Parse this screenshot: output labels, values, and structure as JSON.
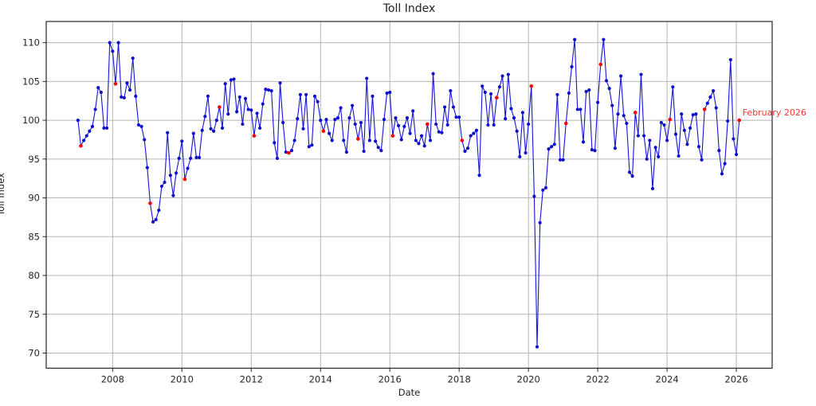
{
  "chart_data": {
    "type": "line",
    "title": "Toll Index",
    "xlabel": "Date",
    "ylabel": "Toll Index",
    "x_start": "2007-01",
    "x_end": "2026-02",
    "frequency": "monthly",
    "grid": true,
    "background_color": "#ffffff",
    "grid_color": "#b5b5b5",
    "spine_color": "#262626",
    "line_color": "#1414dd",
    "marker_color": "#0d0dcc",
    "highlight_color": "#ff0000",
    "ylim": [
      68.05,
      112.73
    ],
    "y_ticks": [
      70,
      75,
      80,
      85,
      90,
      95,
      100,
      105,
      110
    ],
    "x_ticks": {
      "labels": [
        "2008",
        "2010",
        "2012",
        "2014",
        "2016",
        "2018",
        "2020",
        "2022",
        "2024",
        "2026"
      ],
      "month_indices": [
        12,
        36,
        60,
        84,
        108,
        132,
        156,
        180,
        204,
        228
      ]
    },
    "highlight": {
      "rule": "February of each year shown as red markers",
      "month_offset": 1
    },
    "annotation": {
      "text": "February 2026",
      "point": "2026-02",
      "value": 100.0,
      "color": "#f4392e"
    },
    "series": [
      {
        "name": "Toll Index",
        "values": [
          100.0,
          96.7,
          97.4,
          98.0,
          98.6,
          99.2,
          101.4,
          104.2,
          103.6,
          99.0,
          99.0,
          110.0,
          108.9,
          104.7,
          110.0,
          103.0,
          102.9,
          104.8,
          103.9,
          108.0,
          103.1,
          99.4,
          99.2,
          97.5,
          93.9,
          89.3,
          86.9,
          87.2,
          88.4,
          91.5,
          92.0,
          98.4,
          92.9,
          90.3,
          93.2,
          95.1,
          97.3,
          92.4,
          93.8,
          95.1,
          98.3,
          95.2,
          95.2,
          98.7,
          100.5,
          103.1,
          98.9,
          98.6,
          100.0,
          101.7,
          99.0,
          104.7,
          100.8,
          105.2,
          105.3,
          101.1,
          103.0,
          99.5,
          102.8,
          101.4,
          101.3,
          98.0,
          100.9,
          99.0,
          102.1,
          104.0,
          103.9,
          103.8,
          97.1,
          95.1,
          104.8,
          99.7,
          95.9,
          95.8,
          96.1,
          97.4,
          100.2,
          103.3,
          98.9,
          103.3,
          96.6,
          96.8,
          103.1,
          102.4,
          100.0,
          98.6,
          100.1,
          98.3,
          97.4,
          100.1,
          100.3,
          101.6,
          97.4,
          95.9,
          100.3,
          101.9,
          99.5,
          97.6,
          99.7,
          96.0,
          105.4,
          97.4,
          103.1,
          97.3,
          96.5,
          96.1,
          100.1,
          103.5,
          103.6,
          98.0,
          100.3,
          99.3,
          97.5,
          99.2,
          100.3,
          98.3,
          101.2,
          97.4,
          97.0,
          98.0,
          96.7,
          99.5,
          97.4,
          106.0,
          99.5,
          98.5,
          98.4,
          101.7,
          99.4,
          103.8,
          101.7,
          100.4,
          100.4,
          97.4,
          96.0,
          96.4,
          98.0,
          98.3,
          98.7,
          92.9,
          104.4,
          103.6,
          99.4,
          103.4,
          99.4,
          102.9,
          104.3,
          105.7,
          100.2,
          105.9,
          101.5,
          100.3,
          98.6,
          95.3,
          101.0,
          95.8,
          99.5,
          104.4,
          90.2,
          70.8,
          86.8,
          91.0,
          91.3,
          96.3,
          96.6,
          96.9,
          103.3,
          94.9,
          94.9,
          99.6,
          103.5,
          106.9,
          110.4,
          101.4,
          101.4,
          97.2,
          103.7,
          103.9,
          96.2,
          96.1,
          102.3,
          107.2,
          110.4,
          105.1,
          104.1,
          101.9,
          96.4,
          100.8,
          105.7,
          100.6,
          99.6,
          93.3,
          92.8,
          101.0,
          98.0,
          105.9,
          98.0,
          95.0,
          97.4,
          91.2,
          96.5,
          95.3,
          99.7,
          99.4,
          97.4,
          100.1,
          104.3,
          98.2,
          95.4,
          100.8,
          98.7,
          96.9,
          99.0,
          100.7,
          100.8,
          96.6,
          94.9,
          101.4,
          102.2,
          103.0,
          103.8,
          101.6,
          96.1,
          93.1,
          94.4,
          99.9,
          107.8,
          97.6,
          95.6,
          100.0
        ]
      }
    ]
  }
}
